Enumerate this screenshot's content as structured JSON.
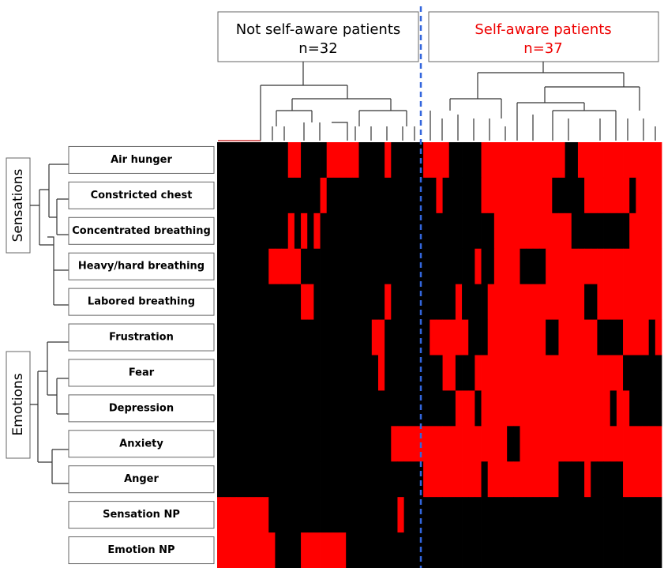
{
  "chart_data": {
    "type": "heatmap",
    "groups": [
      {
        "label": "Not self-aware patients",
        "n": "n=32",
        "color": "#000000"
      },
      {
        "label": "Self-aware patients",
        "n": "n=37",
        "color": "#ff0000"
      }
    ],
    "row_groups": [
      "Sensations",
      "Emotions"
    ],
    "rows": [
      "Air hunger",
      "Constricted chest",
      "Concentrated breathing",
      "Heavy/hard breathing",
      "Labored breathing",
      "Frustration",
      "Fear",
      "Depression",
      "Anxiety",
      "Anger",
      "Sensation NP",
      "Emotion NP"
    ],
    "colors": [
      "#000000",
      "#ff0000"
    ],
    "values": [
      [
        0,
        0,
        0,
        0,
        0,
        0,
        0,
        0,
        0,
        0,
        0,
        1,
        1,
        0,
        0,
        0,
        0,
        1,
        1,
        1,
        1,
        1,
        0,
        0,
        0,
        0,
        1,
        0,
        0,
        0,
        0,
        0,
        1,
        1,
        1,
        1,
        0,
        0,
        0,
        0,
        0,
        1,
        1,
        1,
        1,
        1,
        1,
        1,
        1,
        1,
        1,
        1,
        1,
        1,
        0,
        0,
        1,
        1,
        1,
        1,
        1,
        1,
        1,
        1,
        1,
        1,
        1,
        1,
        1
      ],
      [
        0,
        0,
        0,
        0,
        0,
        0,
        0,
        0,
        0,
        0,
        0,
        0,
        0,
        0,
        0,
        0,
        1,
        0,
        0,
        0,
        0,
        0,
        0,
        0,
        0,
        0,
        0,
        0,
        0,
        0,
        0,
        0,
        0,
        0,
        1,
        0,
        0,
        0,
        0,
        0,
        0,
        1,
        1,
        1,
        1,
        1,
        1,
        1,
        1,
        1,
        1,
        1,
        0,
        0,
        0,
        0,
        0,
        1,
        1,
        1,
        1,
        1,
        1,
        1,
        0,
        1,
        1,
        1,
        1
      ],
      [
        0,
        0,
        0,
        0,
        0,
        0,
        0,
        0,
        0,
        0,
        0,
        1,
        0,
        1,
        0,
        1,
        0,
        0,
        0,
        0,
        0,
        0,
        0,
        0,
        0,
        0,
        0,
        0,
        0,
        0,
        0,
        0,
        0,
        0,
        0,
        0,
        0,
        0,
        0,
        0,
        0,
        0,
        0,
        1,
        1,
        1,
        1,
        1,
        1,
        1,
        1,
        1,
        1,
        1,
        1,
        0,
        0,
        0,
        0,
        0,
        0,
        0,
        0,
        0,
        1,
        1,
        1,
        1,
        1
      ],
      [
        0,
        0,
        0,
        0,
        0,
        0,
        0,
        0,
        1,
        1,
        1,
        1,
        1,
        0,
        0,
        0,
        0,
        0,
        0,
        0,
        0,
        0,
        0,
        0,
        0,
        0,
        0,
        0,
        0,
        0,
        0,
        0,
        0,
        0,
        0,
        0,
        0,
        0,
        0,
        0,
        1,
        0,
        0,
        1,
        1,
        1,
        1,
        0,
        0,
        0,
        0,
        1,
        1,
        1,
        1,
        1,
        1,
        1,
        1,
        1,
        1,
        1,
        1,
        1,
        1,
        1,
        1,
        1,
        1
      ],
      [
        0,
        0,
        0,
        0,
        0,
        0,
        0,
        0,
        0,
        0,
        0,
        0,
        0,
        1,
        1,
        0,
        0,
        0,
        0,
        0,
        0,
        0,
        0,
        0,
        0,
        0,
        1,
        0,
        0,
        0,
        0,
        0,
        0,
        0,
        0,
        0,
        0,
        1,
        0,
        0,
        0,
        0,
        1,
        1,
        1,
        1,
        1,
        1,
        1,
        1,
        1,
        1,
        1,
        1,
        1,
        1,
        1,
        0,
        0,
        1,
        1,
        1,
        1,
        1,
        1,
        1,
        1,
        1,
        1
      ],
      [
        0,
        0,
        0,
        0,
        0,
        0,
        0,
        0,
        0,
        0,
        0,
        0,
        0,
        0,
        0,
        0,
        0,
        0,
        0,
        0,
        0,
        0,
        0,
        0,
        1,
        1,
        0,
        0,
        0,
        0,
        0,
        0,
        0,
        1,
        1,
        1,
        1,
        1,
        1,
        0,
        0,
        0,
        1,
        1,
        1,
        1,
        1,
        1,
        1,
        1,
        1,
        0,
        0,
        1,
        1,
        1,
        1,
        1,
        1,
        0,
        0,
        0,
        0,
        1,
        1,
        1,
        1,
        0,
        1
      ],
      [
        0,
        0,
        0,
        0,
        0,
        0,
        0,
        0,
        0,
        0,
        0,
        0,
        0,
        0,
        0,
        0,
        0,
        0,
        0,
        0,
        0,
        0,
        0,
        0,
        0,
        1,
        0,
        0,
        0,
        0,
        0,
        0,
        0,
        0,
        0,
        1,
        1,
        0,
        0,
        0,
        1,
        1,
        1,
        1,
        1,
        1,
        1,
        1,
        1,
        1,
        1,
        1,
        1,
        1,
        1,
        1,
        1,
        1,
        1,
        1,
        1,
        1,
        1,
        0,
        0,
        0,
        0,
        0,
        0
      ],
      [
        0,
        0,
        0,
        0,
        0,
        0,
        0,
        0,
        0,
        0,
        0,
        0,
        0,
        0,
        0,
        0,
        0,
        0,
        0,
        0,
        0,
        0,
        0,
        0,
        0,
        0,
        0,
        0,
        0,
        0,
        0,
        0,
        0,
        0,
        0,
        0,
        0,
        1,
        1,
        1,
        0,
        1,
        1,
        1,
        1,
        1,
        1,
        1,
        1,
        1,
        1,
        1,
        1,
        1,
        1,
        1,
        1,
        1,
        1,
        1,
        1,
        0,
        1,
        1,
        0,
        0,
        0,
        0,
        0
      ],
      [
        0,
        0,
        0,
        0,
        0,
        0,
        0,
        0,
        0,
        0,
        0,
        0,
        0,
        0,
        0,
        0,
        0,
        0,
        0,
        0,
        0,
        0,
        0,
        0,
        0,
        0,
        0,
        1,
        1,
        1,
        1,
        1,
        1,
        1,
        1,
        1,
        1,
        1,
        1,
        1,
        1,
        1,
        1,
        1,
        1,
        0,
        0,
        1,
        1,
        1,
        1,
        1,
        1,
        1,
        1,
        1,
        1,
        1,
        1,
        1,
        1,
        1,
        1,
        1,
        1,
        1,
        1,
        1,
        1
      ],
      [
        0,
        0,
        0,
        0,
        0,
        0,
        0,
        0,
        0,
        0,
        0,
        0,
        0,
        0,
        0,
        0,
        0,
        0,
        0,
        0,
        0,
        0,
        0,
        0,
        0,
        0,
        0,
        0,
        0,
        0,
        0,
        0,
        1,
        1,
        1,
        1,
        1,
        1,
        1,
        1,
        1,
        0,
        1,
        1,
        1,
        1,
        1,
        1,
        1,
        1,
        1,
        1,
        1,
        0,
        0,
        0,
        0,
        1,
        0,
        0,
        0,
        0,
        0,
        1,
        1,
        1,
        1,
        1,
        1
      ],
      [
        1,
        1,
        1,
        1,
        1,
        1,
        1,
        1,
        0,
        0,
        0,
        0,
        0,
        0,
        0,
        0,
        0,
        0,
        0,
        0,
        0,
        0,
        0,
        0,
        0,
        0,
        0,
        0,
        1,
        0,
        0,
        0,
        0,
        0,
        0,
        0,
        0,
        0,
        0,
        0,
        0,
        0,
        0,
        0,
        0,
        0,
        0,
        0,
        0,
        0,
        0,
        0,
        0,
        0,
        0,
        0,
        0,
        0,
        0,
        0,
        0,
        0,
        0,
        0,
        0,
        0,
        0,
        0,
        0
      ],
      [
        1,
        1,
        1,
        1,
        1,
        1,
        1,
        1,
        1,
        0,
        0,
        0,
        0,
        1,
        1,
        1,
        1,
        1,
        1,
        1,
        0,
        0,
        0,
        0,
        0,
        0,
        0,
        0,
        0,
        0,
        0,
        0,
        0,
        0,
        0,
        0,
        0,
        0,
        0,
        0,
        0,
        0,
        0,
        0,
        0,
        0,
        0,
        0,
        0,
        0,
        0,
        0,
        0,
        0,
        0,
        0,
        0,
        0,
        0,
        0,
        0,
        0,
        0,
        0,
        0,
        0,
        0,
        0,
        0
      ]
    ]
  }
}
